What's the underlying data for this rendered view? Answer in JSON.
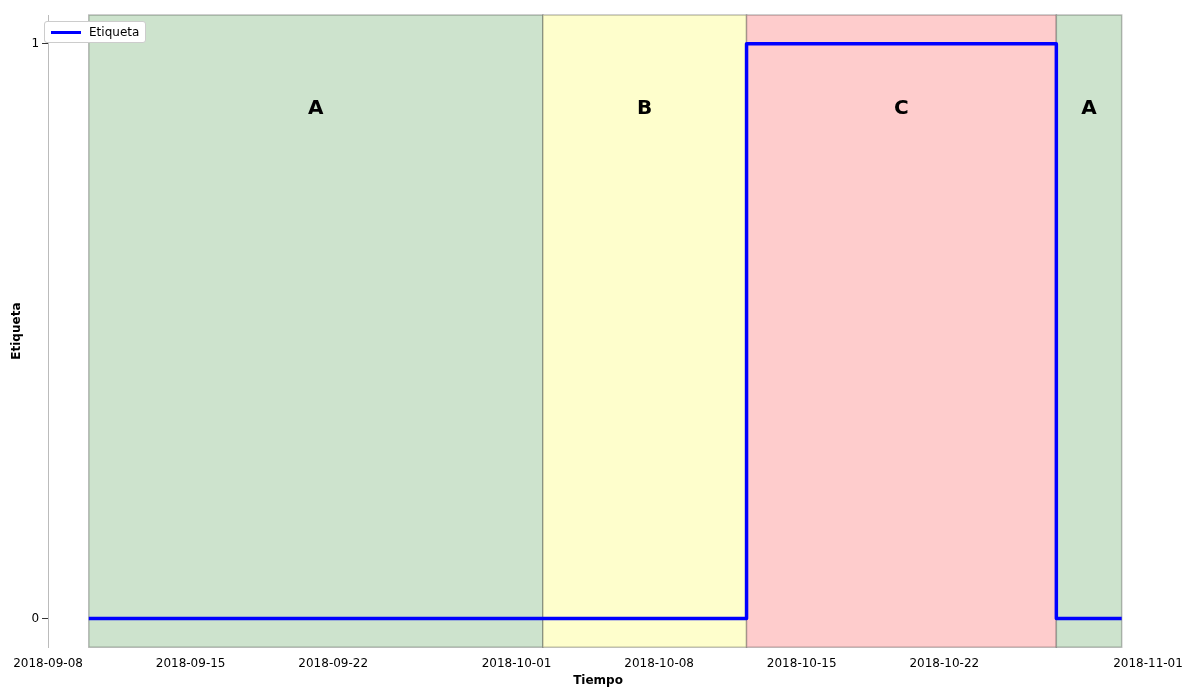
{
  "chart_data": {
    "type": "step",
    "xlabel": "Tiempo",
    "ylabel": "Etiqueta",
    "x": [
      "2018-09-10",
      "2018-10-12T07:00",
      "2018-10-27T12:00",
      "2018-10-30T17:00"
    ],
    "series": [
      {
        "name": "Etiqueta",
        "color": "#0000ff",
        "values": [
          0,
          1,
          0,
          0
        ]
      }
    ],
    "xlim": [
      "2018-09-08",
      "2018-11-01"
    ],
    "xticks": [
      "2018-09-08",
      "2018-09-15",
      "2018-09-22",
      "2018-10-01",
      "2018-10-08",
      "2018-10-15",
      "2018-10-22",
      "2018-11-01"
    ],
    "ylim": [
      -0.05,
      1.05
    ],
    "yticks": [
      0,
      1
    ],
    "bands": [
      {
        "axis": "x",
        "from": "2018-09-10",
        "to": "2018-10-02T07:00",
        "label": "A",
        "color": "#cde3cd"
      },
      {
        "axis": "x",
        "from": "2018-10-02T07:00",
        "to": "2018-10-12T07:00",
        "label": "B",
        "color": "#fefecc"
      },
      {
        "axis": "x",
        "from": "2018-10-12T07:00",
        "to": "2018-10-27T12:00",
        "label": "C",
        "color": "#fecccc"
      },
      {
        "axis": "x",
        "from": "2018-10-27T12:00",
        "to": "2018-10-30T17:00",
        "label": "A",
        "color": "#cde3cd"
      }
    ],
    "grid": false,
    "legend": "top left",
    "marker": "none",
    "line_style": "solid"
  }
}
